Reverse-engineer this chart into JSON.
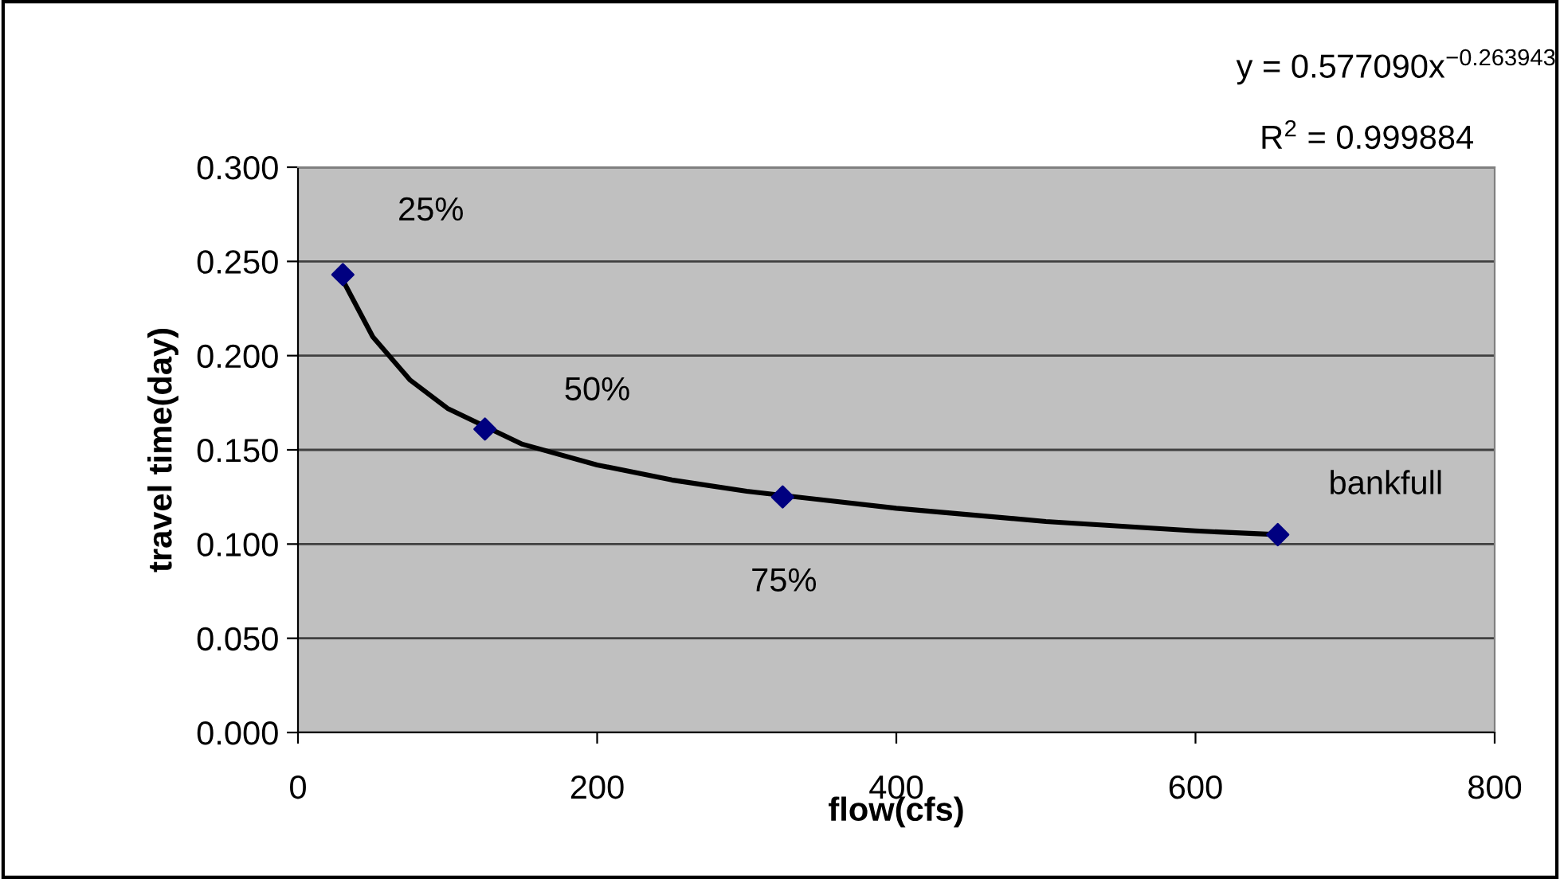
{
  "chart_data": {
    "type": "scatter",
    "xlabel": "flow(cfs)",
    "ylabel": "travel time(day)",
    "xlim": [
      0,
      800
    ],
    "xticks": [
      0,
      200,
      400,
      600,
      800
    ],
    "ylim": [
      0,
      0.3
    ],
    "yticks": [
      {
        "value": 0,
        "label": "0.000"
      },
      {
        "value": 0.05,
        "label": "0.050"
      },
      {
        "value": 0.1,
        "label": "0.100"
      },
      {
        "value": 0.15,
        "label": "0.150"
      },
      {
        "value": 0.2,
        "label": "0.200"
      },
      {
        "value": 0.25,
        "label": "0.250"
      },
      {
        "value": 0.3,
        "label": "0.300"
      }
    ],
    "grid": "y",
    "legend": false,
    "series": [
      {
        "color": "#000080",
        "marker": "diamond",
        "x": [
          30,
          125,
          324,
          655
        ],
        "values": [
          0.243,
          0.161,
          0.125,
          0.105
        ]
      },
      {
        "type": "line",
        "color": "#000000",
        "line_style": "solid",
        "x": [
          30,
          50,
          75,
          100,
          150,
          200,
          250,
          300,
          400,
          500,
          600,
          655
        ],
        "values": [
          0.24,
          0.21,
          0.187,
          0.172,
          0.153,
          0.142,
          0.134,
          0.128,
          0.119,
          0.112,
          0.107,
          0.105
        ]
      }
    ],
    "annotations": [
      "25%",
      "50%",
      "75%",
      "bankfull",
      "y = 0.577090x$^{−0.263943}$",
      "R$^{2}$ = 0.999884"
    ]
  }
}
